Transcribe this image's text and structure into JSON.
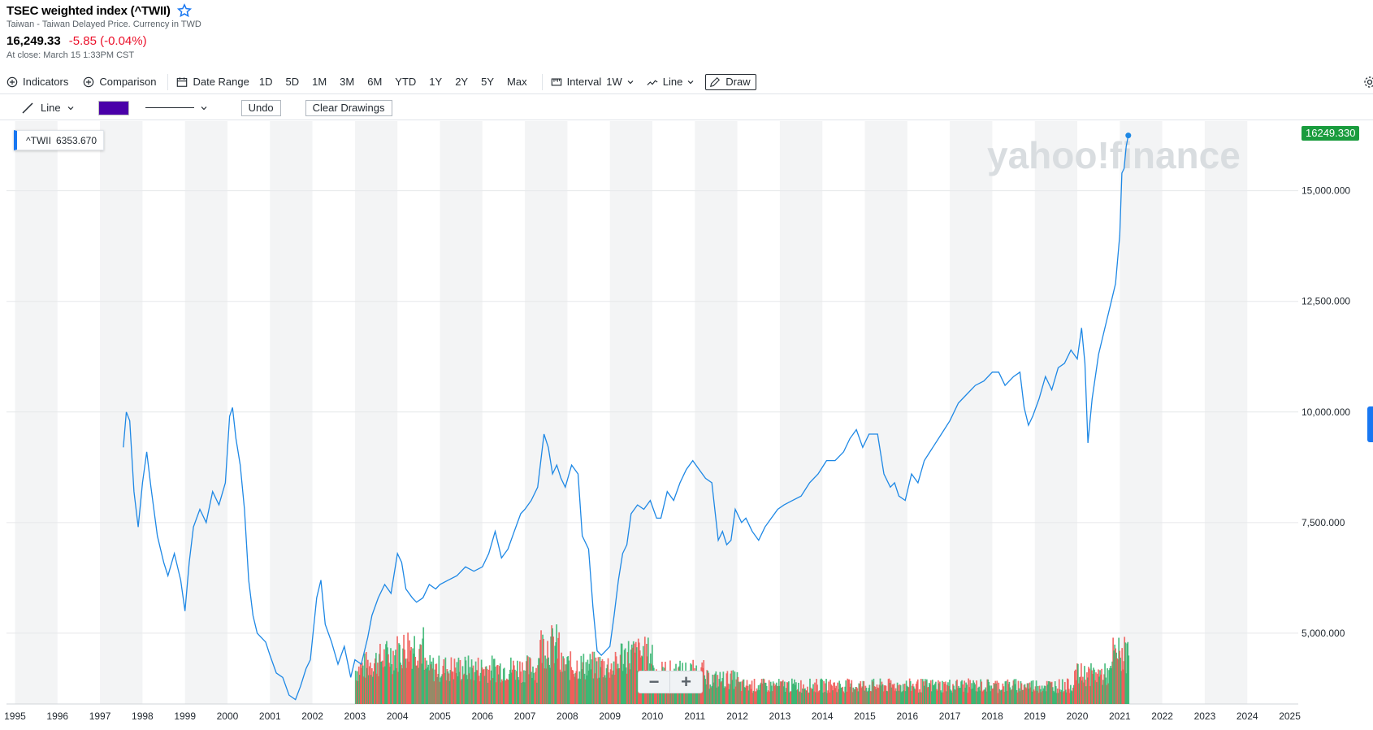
{
  "header": {
    "title": "TSEC weighted index (^TWII)",
    "subtitle": "Taiwan - Taiwan Delayed Price. Currency in TWD",
    "price": "16,249.33",
    "change": "-5.85 (-0.04%)",
    "close_time": "At close: March 15 1:33PM CST"
  },
  "toolbar": {
    "indicators": "Indicators",
    "comparison": "Comparison",
    "date_range": "Date Range",
    "ranges": [
      "1D",
      "5D",
      "1M",
      "3M",
      "6M",
      "YTD",
      "1Y",
      "2Y",
      "5Y",
      "Max"
    ],
    "interval_label": "Interval",
    "interval_value": "1W",
    "chart_type": "Line",
    "draw": "Draw",
    "settings_label": "S"
  },
  "drawbar": {
    "line_tool": "Line",
    "color": "#4a00a9",
    "undo": "Undo",
    "clear": "Clear Drawings"
  },
  "tooltip": {
    "symbol": "^TWII",
    "value": "6353.670"
  },
  "last_value_badge": "16249.330",
  "watermark": "yahoo!finance",
  "colors": {
    "line": "#1e88e5",
    "volume_up": "#2fb36b",
    "volume_down": "#ef5350",
    "badge": "#1a9c3e",
    "change_negative": "#eb0f29"
  },
  "chart_data": {
    "type": "line",
    "series": [
      {
        "x": [
          1997.55,
          1997.62,
          1997.7,
          1997.8,
          1997.9,
          1998.0,
          1998.1,
          1998.2,
          1998.35,
          1998.5,
          1998.6,
          1998.75,
          1998.9,
          1999.0,
          1999.1,
          1999.2,
          1999.35,
          1999.5,
          1999.65,
          1999.8,
          1999.95,
          2000.05,
          2000.12,
          2000.2,
          2000.3,
          2000.4,
          2000.5,
          2000.6,
          2000.7,
          2000.8,
          2000.9,
          2001.0,
          2001.15,
          2001.3,
          2001.45,
          2001.6,
          2001.72,
          2001.85,
          2001.95,
          2002.1,
          2002.2,
          2002.3,
          2002.45,
          2002.6,
          2002.75,
          2002.9,
          2003.0,
          2003.15,
          2003.3,
          2003.4,
          2003.55,
          2003.7,
          2003.85,
          2004.0,
          2004.1,
          2004.2,
          2004.35,
          2004.45,
          2004.6,
          2004.75,
          2004.9,
          2005.0,
          2005.2,
          2005.4,
          2005.6,
          2005.8,
          2006.0,
          2006.15,
          2006.3,
          2006.45,
          2006.6,
          2006.75,
          2006.9,
          2007.0,
          2007.15,
          2007.3,
          2007.45,
          2007.55,
          2007.65,
          2007.75,
          2007.85,
          2007.95,
          2008.1,
          2008.25,
          2008.35,
          2008.5,
          2008.6,
          2008.7,
          2008.8,
          2008.9,
          2009.0,
          2009.1,
          2009.2,
          2009.3,
          2009.4,
          2009.5,
          2009.65,
          2009.8,
          2009.95,
          2010.1,
          2010.2,
          2010.35,
          2010.5,
          2010.65,
          2010.8,
          2010.95,
          2011.1,
          2011.25,
          2011.4,
          2011.55,
          2011.65,
          2011.75,
          2011.85,
          2011.95,
          2012.1,
          2012.2,
          2012.35,
          2012.5,
          2012.65,
          2012.8,
          2012.95,
          2013.1,
          2013.3,
          2013.5,
          2013.7,
          2013.9,
          2014.1,
          2014.3,
          2014.5,
          2014.65,
          2014.8,
          2014.95,
          2015.1,
          2015.3,
          2015.45,
          2015.6,
          2015.7,
          2015.8,
          2015.95,
          2016.1,
          2016.25,
          2016.4,
          2016.6,
          2016.8,
          2017.0,
          2017.2,
          2017.4,
          2017.6,
          2017.8,
          2018.0,
          2018.15,
          2018.3,
          2018.5,
          2018.65,
          2018.75,
          2018.85,
          2018.95,
          2019.1,
          2019.25,
          2019.4,
          2019.55,
          2019.7,
          2019.85,
          2020.0,
          2020.1,
          2020.18,
          2020.25,
          2020.35,
          2020.5,
          2020.65,
          2020.8,
          2020.9,
          2021.0,
          2021.05,
          2021.1,
          2021.15,
          2021.2
        ],
        "y": [
          9200,
          10000,
          9800,
          8200,
          7400,
          8400,
          9100,
          8300,
          7200,
          6600,
          6300,
          6800,
          6200,
          5500,
          6600,
          7400,
          7800,
          7500,
          8200,
          7900,
          8400,
          9900,
          10100,
          9400,
          8800,
          7800,
          6200,
          5400,
          5000,
          4900,
          4800,
          4500,
          4100,
          4000,
          3600,
          3500,
          3800,
          4200,
          4400,
          5800,
          6200,
          5200,
          4800,
          4300,
          4700,
          4000,
          4400,
          4300,
          4900,
          5400,
          5800,
          6100,
          5900,
          6800,
          6600,
          6000,
          5800,
          5700,
          5800,
          6100,
          6000,
          6100,
          6200,
          6300,
          6500,
          6400,
          6500,
          6800,
          7300,
          6700,
          6900,
          7300,
          7700,
          7800,
          8000,
          8300,
          9500,
          9200,
          8600,
          8800,
          8500,
          8300,
          8800,
          8600,
          7200,
          6900,
          5600,
          4600,
          4500,
          4600,
          4700,
          5400,
          6200,
          6800,
          7000,
          7700,
          7900,
          7800,
          8000,
          7600,
          7600,
          8200,
          8000,
          8400,
          8700,
          8900,
          8700,
          8500,
          8400,
          7100,
          7300,
          7000,
          7100,
          7800,
          7500,
          7600,
          7300,
          7100,
          7400,
          7600,
          7800,
          7900,
          8000,
          8100,
          8400,
          8600,
          8900,
          8900,
          9100,
          9400,
          9600,
          9200,
          9500,
          9500,
          8600,
          8300,
          8400,
          8100,
          8000,
          8600,
          8400,
          8900,
          9200,
          9500,
          9800,
          10200,
          10400,
          10600,
          10700,
          10900,
          10900,
          10600,
          10800,
          10900,
          10100,
          9700,
          9900,
          10300,
          10800,
          10500,
          11000,
          11100,
          11400,
          11200,
          11900,
          11100,
          9300,
          10300,
          11300,
          11900,
          12500,
          12900,
          14000,
          15400,
          15500,
          16000,
          16249
        ]
      },
      {
        "name": "Volume",
        "type": "bar",
        "note": "weekly volume bars from 2003 to 2021 (relative, no scale shown)"
      }
    ],
    "xlabel": "",
    "ylabel": "",
    "xlim": [
      1994.8,
      2025.2
    ],
    "ylim": [
      3400,
      16500
    ],
    "x_ticks": [
      "1995",
      "1996",
      "1997",
      "1998",
      "1999",
      "2000",
      "2001",
      "2002",
      "2003",
      "2004",
      "2005",
      "2006",
      "2007",
      "2008",
      "2009",
      "2010",
      "2011",
      "2012",
      "2013",
      "2014",
      "2015",
      "2016",
      "2017",
      "2018",
      "2019",
      "2020",
      "2021",
      "2022",
      "2023",
      "2024",
      "2025"
    ],
    "y_ticks": [
      {
        "value": 5000,
        "label": "5,000.000"
      },
      {
        "value": 7500,
        "label": "7,500.000"
      },
      {
        "value": 10000,
        "label": "10,000.000"
      },
      {
        "value": 12500,
        "label": "12,500.000"
      },
      {
        "value": 15000,
        "label": "15,000.000"
      }
    ],
    "grid": true,
    "alternating_year_bands": true
  }
}
